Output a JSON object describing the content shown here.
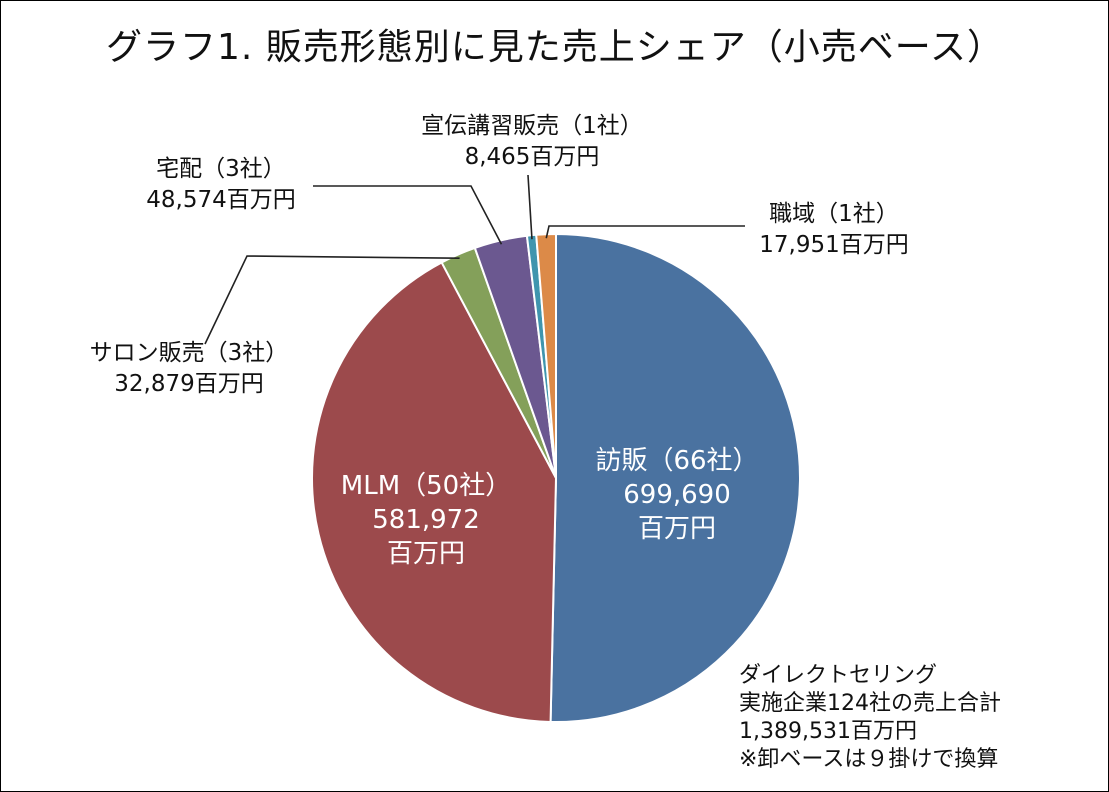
{
  "chart_data": {
    "type": "pie",
    "title": "グラフ1. 販売形態別に見た売上シェア（小売ベース）",
    "unit": "百万円",
    "slices": [
      {
        "name": "訪販",
        "label": "訪販（66社）",
        "value_label": "699,690",
        "unit_label": "百万円",
        "value": 699690,
        "color": "#4a72a0"
      },
      {
        "name": "MLM",
        "label": "MLM（50社）",
        "value_label": "581,972",
        "unit_label": "百万円",
        "value": 581972,
        "color": "#9c4a4c"
      },
      {
        "name": "サロン販売",
        "label": "サロン販売（3社）",
        "value_label": "32,879百万円",
        "value": 32879,
        "color": "#84a05a"
      },
      {
        "name": "宅配",
        "label": "宅配（3社）",
        "value_label": "48,574百万円",
        "value": 48574,
        "color": "#6b5890"
      },
      {
        "name": "宣伝講習販売",
        "label": "宣伝講習販売（1社）",
        "value_label": "8,465百万円",
        "value": 8465,
        "color": "#3f95ae"
      },
      {
        "name": "職域",
        "label": "職域（1社）",
        "value_label": "17,951百万円",
        "value": 17951,
        "color": "#dc8a48"
      }
    ],
    "note": [
      "ダイレクトセリング",
      "実施企業124社の売上合計",
      "1,389,531百万円",
      "※卸ベースは９掛けで換算"
    ]
  }
}
